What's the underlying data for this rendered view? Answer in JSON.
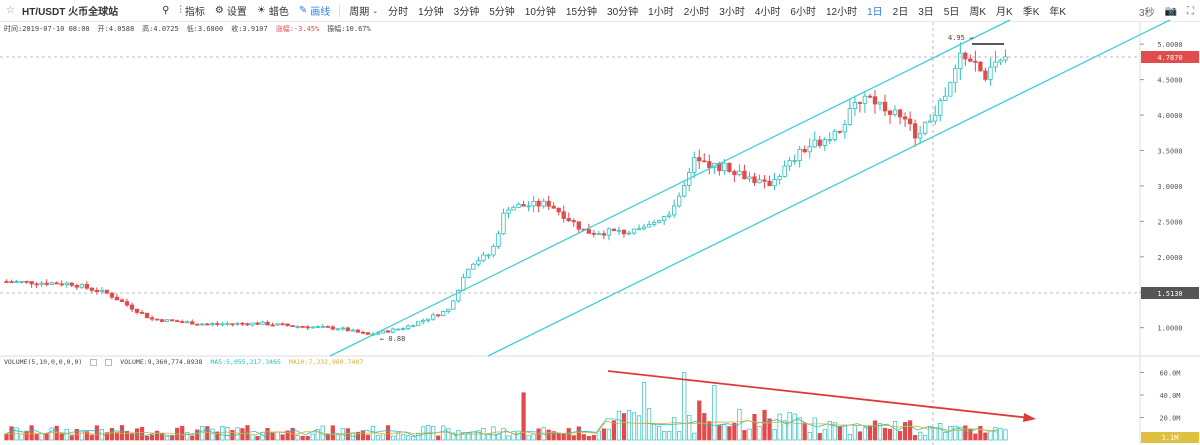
{
  "toolbar": {
    "pair": "HT/USDT 火币全球站",
    "search_icon": "search-icon",
    "indicators": "指标",
    "settings": "设置",
    "theme": "蜡色",
    "draw": "画线",
    "period_label": "周期",
    "periods": [
      "分时",
      "1分钟",
      "3分钟",
      "5分钟",
      "10分钟",
      "15分钟",
      "30分钟",
      "1小时",
      "2小时",
      "3小时",
      "4小时",
      "6小时",
      "12小时",
      "1日",
      "2日",
      "3日",
      "5日",
      "周K",
      "月K",
      "季K",
      "年K"
    ],
    "active_period": "1日",
    "refresh": "3秒"
  },
  "ohlc_info": {
    "time": "时间:2019-07-10 08:00",
    "open": "开:4.0588",
    "high": "高:4.0725",
    "low": "低:3.6800",
    "close": "收:3.9107",
    "change": "涨幅:-3.45%",
    "amplitude": "振幅:10.67%"
  },
  "volume_legend": {
    "label": "VOLUME(5,10,0,0,0,0)",
    "volume": "VOLUME:9,360,774.8938",
    "ma5": "MA5:5,055,217.3465",
    "ma10": "MA10:7,332,060.7407"
  },
  "price_axis": {
    "ticks": [
      "5.0000",
      "4.5000",
      "4.0000",
      "3.5000",
      "3.0000",
      "2.5000",
      "2.0000",
      "1.5000",
      "1.0000"
    ],
    "current_price": "4.7870",
    "crosshair_price": "1.5130"
  },
  "volume_axis": {
    "ticks": [
      "60.0M",
      "40.0M",
      "20.0M"
    ],
    "current_volume": "1.1M"
  },
  "annotations": {
    "high_label": "4.95",
    "low_label": "0.88"
  },
  "colors": {
    "up": "#2bbfbf",
    "down": "#e04b4b",
    "channel": "#3ccfd6",
    "arrow": "#e03a3a"
  },
  "chart_data": {
    "type": "candlestick",
    "start_price": 1.65,
    "peak_price": 4.95,
    "trough_price": 0.88,
    "last_price": 4.787,
    "ylim": [
      0.6,
      5.2
    ]
  }
}
